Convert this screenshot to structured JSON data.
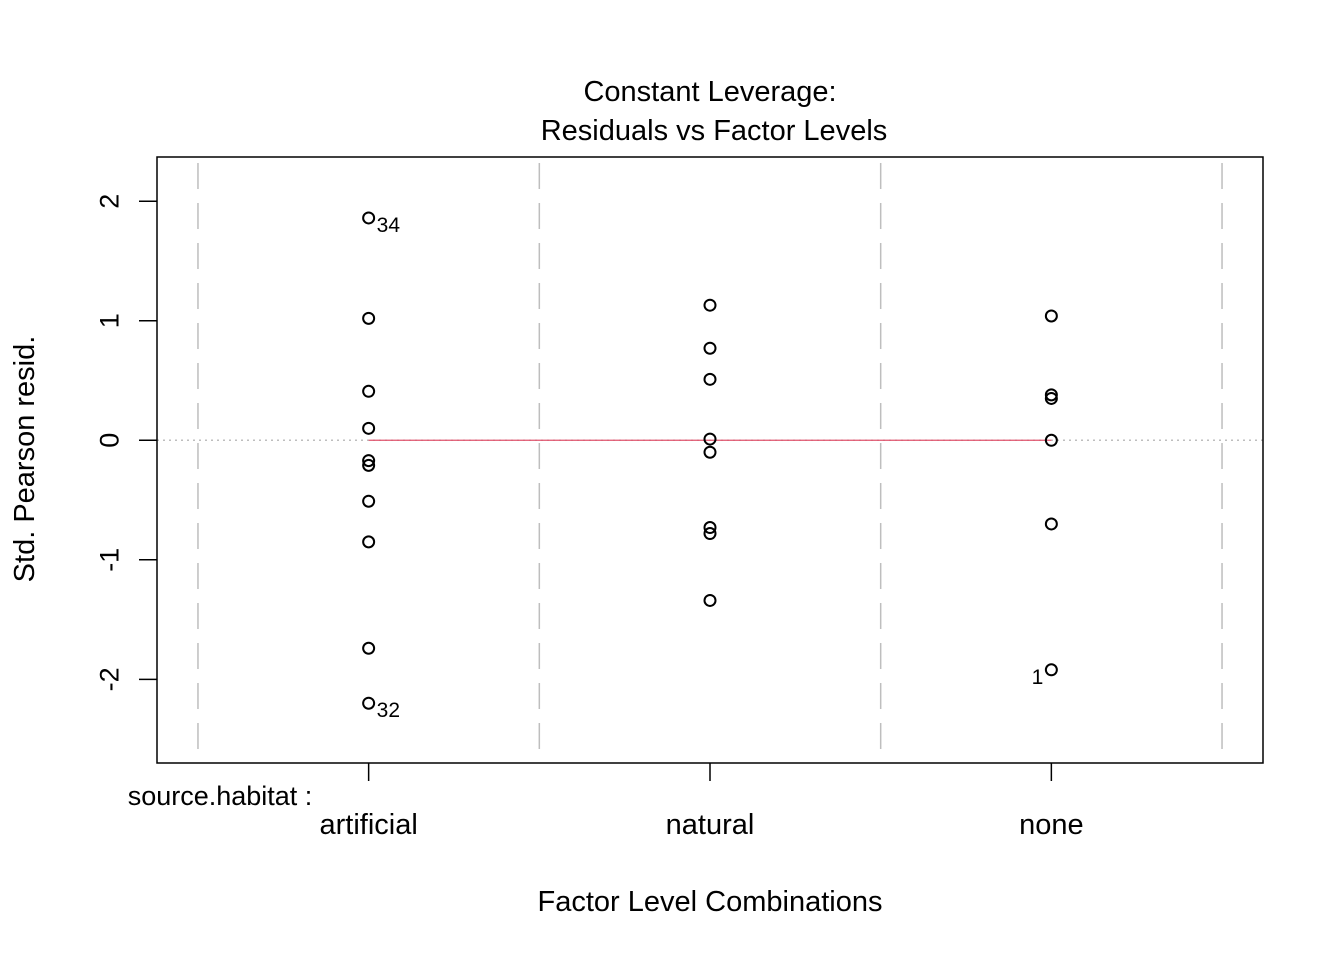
{
  "chart_data": {
    "type": "scatter",
    "title": "Constant Leverage:",
    "subtitle": "Residuals vs Factor Levels",
    "xlabel": "Factor Level Combinations",
    "ylabel": "Std. Pearson resid.",
    "factor_label": "source.habitat :",
    "categories": [
      "artificial",
      "natural",
      "none"
    ],
    "ylim": [
      -2.7,
      2.37
    ],
    "y_ticks": [
      -2,
      -1,
      0,
      1,
      2
    ],
    "y_tick_labels": [
      "-2",
      "-1",
      "0",
      "1",
      "2"
    ],
    "grid": false,
    "reference_line_y": 0,
    "colors": {
      "points": "#000000",
      "smoother": "#df536b",
      "guides": "#bebebe",
      "zero_line": "#bebebe"
    },
    "smoother": {
      "category_range": [
        "artificial",
        "none"
      ],
      "y": 0
    },
    "series": [
      {
        "category": "artificial",
        "values": [
          1.86,
          1.02,
          0.41,
          0.1,
          -0.17,
          -0.21,
          -0.51,
          -0.85,
          -1.74,
          -2.2
        ]
      },
      {
        "category": "natural",
        "values": [
          1.13,
          0.77,
          0.51,
          0.01,
          -0.1,
          -0.73,
          -0.78,
          -1.34
        ]
      },
      {
        "category": "none",
        "values": [
          1.04,
          0.38,
          0.35,
          0.0,
          -0.7,
          -1.92
        ]
      }
    ],
    "point_labels": [
      {
        "category": "artificial",
        "y": 1.86,
        "label": "34",
        "side": "right"
      },
      {
        "category": "artificial",
        "y": -2.2,
        "label": "32",
        "side": "right"
      },
      {
        "category": "none",
        "y": -1.92,
        "label": "1",
        "side": "left"
      }
    ]
  }
}
